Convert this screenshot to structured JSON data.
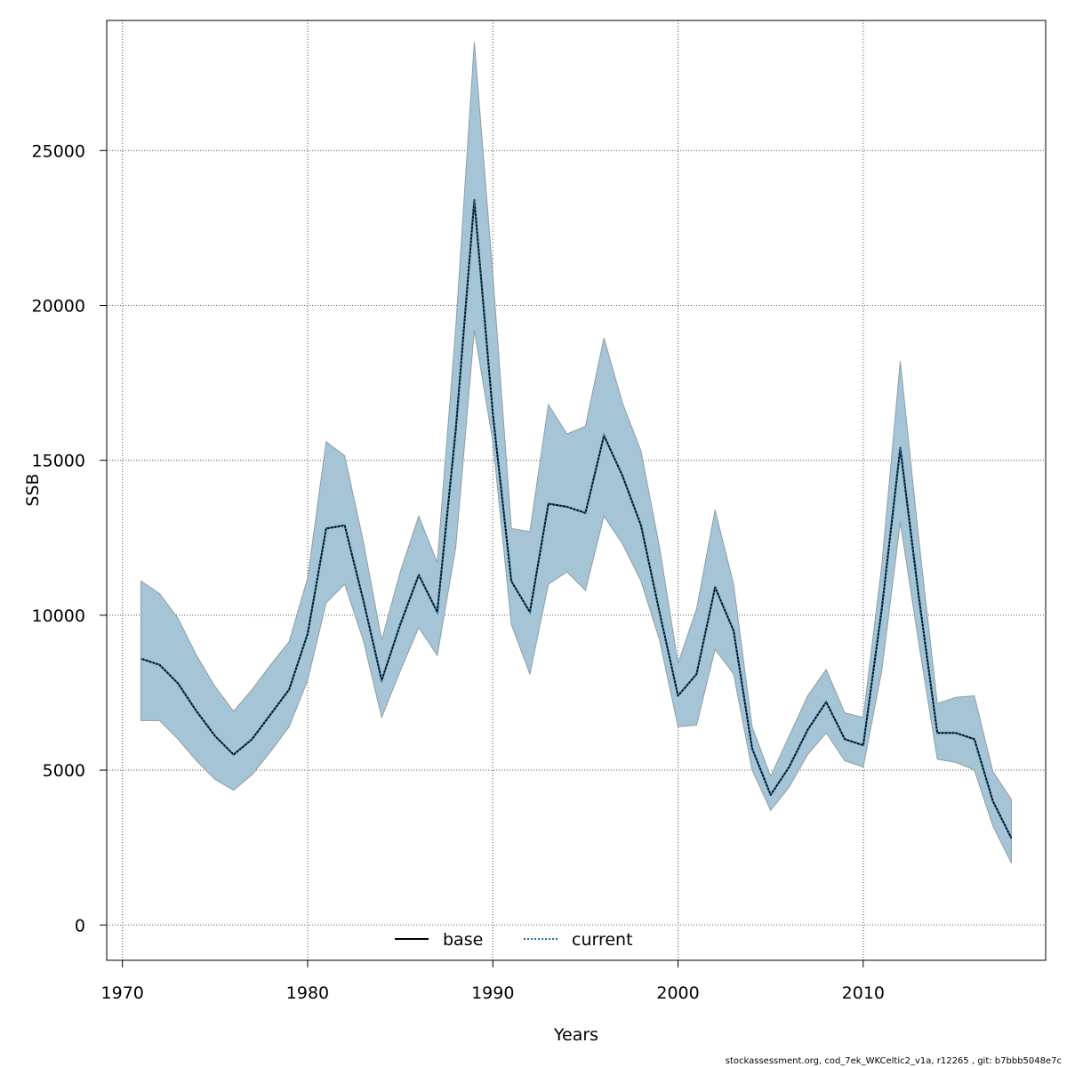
{
  "chart_data": {
    "type": "line",
    "title": "",
    "xlabel": "Years",
    "ylabel": "SSB",
    "xlim": [
      1969.15,
      2019.85
    ],
    "ylim": [
      -1140,
      29200
    ],
    "x_ticks": [
      1970,
      1980,
      1990,
      2000,
      2010
    ],
    "y_ticks": [
      0,
      5000,
      10000,
      15000,
      20000,
      25000
    ],
    "grid": true,
    "legend_position": "bottom-center",
    "colors": {
      "band": "#a5c5d6",
      "band_edge": "#8f9da5",
      "current": "#1f6f9c",
      "base": "#000000",
      "grid": "#555555"
    },
    "x": [
      1971,
      1972,
      1973,
      1974,
      1975,
      1976,
      1977,
      1978,
      1979,
      1980,
      1981,
      1982,
      1983,
      1984,
      1985,
      1986,
      1987,
      1988,
      1989,
      1990,
      1991,
      1992,
      1993,
      1994,
      1995,
      1996,
      1997,
      1998,
      1999,
      2000,
      2001,
      2002,
      2003,
      2004,
      2005,
      2006,
      2007,
      2008,
      2009,
      2010,
      2011,
      2012,
      2013,
      2014,
      2015,
      2016,
      2017,
      2018
    ],
    "series": [
      {
        "name": "base",
        "style": "solid",
        "values": [
          8600,
          8400,
          7800,
          6900,
          6100,
          5500,
          6000,
          6800,
          7600,
          9400,
          12800,
          12900,
          10500,
          7900,
          9700,
          11300,
          10100,
          16000,
          23400,
          16500,
          11100,
          10100,
          13600,
          13500,
          13300,
          15800,
          14500,
          12900,
          10100,
          7400,
          8100,
          10900,
          9500,
          5700,
          4200,
          5100,
          6300,
          7200,
          6000,
          5800,
          10200,
          15400,
          10600,
          6200,
          6200,
          6000,
          4000,
          2800
        ]
      },
      {
        "name": "current",
        "style": "dotted",
        "values": [
          8600,
          8400,
          7800,
          6900,
          6100,
          5500,
          6000,
          6800,
          7600,
          9400,
          12800,
          12900,
          10500,
          7900,
          9700,
          11300,
          10100,
          16000,
          23400,
          16500,
          11100,
          10100,
          13600,
          13500,
          13300,
          15800,
          14500,
          12900,
          10100,
          7400,
          8100,
          10900,
          9500,
          5700,
          4200,
          5100,
          6300,
          7200,
          6000,
          5800,
          10200,
          15400,
          10600,
          6200,
          6200,
          6000,
          4000,
          2800
        ]
      }
    ],
    "confidence_band": {
      "lower": [
        6600,
        6600,
        6000,
        5300,
        4700,
        4350,
        4850,
        5600,
        6400,
        7900,
        10400,
        11000,
        9200,
        6700,
        8200,
        9600,
        8700,
        12200,
        19200,
        15600,
        9700,
        8100,
        11000,
        11400,
        10800,
        13200,
        12300,
        11100,
        9200,
        6400,
        6450,
        8900,
        8100,
        5000,
        3700,
        4450,
        5500,
        6200,
        5300,
        5100,
        8200,
        13000,
        9100,
        5350,
        5250,
        5000,
        3200,
        2000
      ],
      "upper": [
        11100,
        10700,
        9900,
        8700,
        7700,
        6900,
        7600,
        8400,
        9150,
        11200,
        15600,
        15150,
        12400,
        9200,
        11400,
        13200,
        11700,
        19300,
        28500,
        21000,
        12800,
        12700,
        16800,
        15850,
        16100,
        18950,
        16850,
        15300,
        12200,
        8450,
        10200,
        13400,
        11000,
        6400,
        4800,
        6100,
        7400,
        8250,
        6850,
        6700,
        11600,
        18200,
        12450,
        7150,
        7350,
        7400,
        4950,
        4050
      ]
    }
  },
  "legend": {
    "items": [
      "base",
      "current"
    ]
  },
  "footer": "stockassessment.org, cod_7ek_WKCeltic2_v1a, r12265 , git: b7bbb5048e7c"
}
